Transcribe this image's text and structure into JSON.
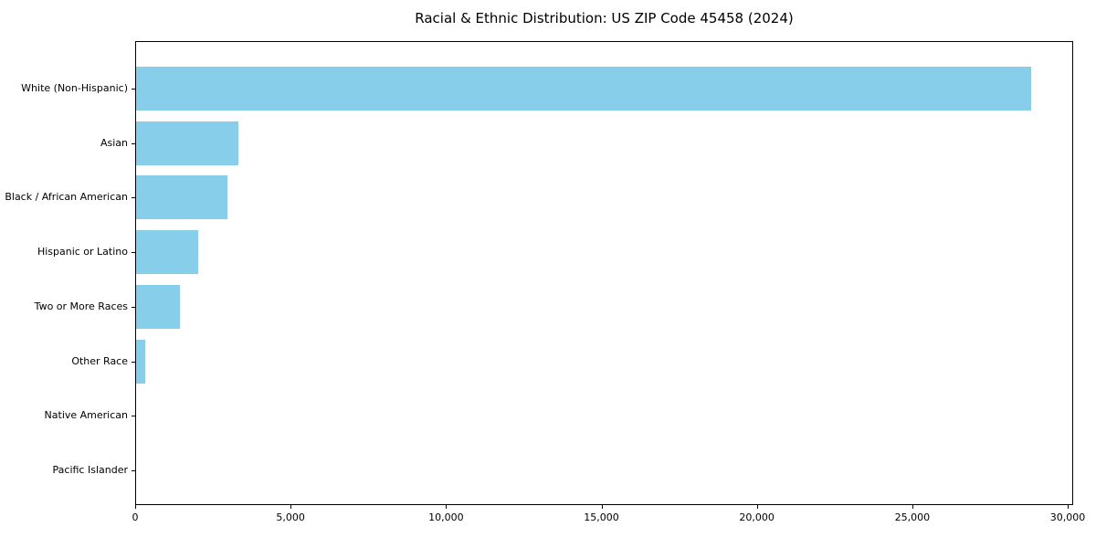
{
  "chart_data": {
    "type": "bar",
    "orientation": "horizontal",
    "title": "Racial & Ethnic Distribution: US ZIP Code 45458 (2024)",
    "categories": [
      "White (Non-Hispanic)",
      "Asian",
      "Black / African American",
      "Hispanic or Latino",
      "Two or More Races",
      "Other Race",
      "Native American",
      "Pacific Islander"
    ],
    "values": [
      28800,
      3300,
      2950,
      2000,
      1400,
      300,
      0,
      0
    ],
    "xlabel": "",
    "ylabel": "",
    "xlim": [
      0,
      30200
    ],
    "xticks": [
      0,
      5000,
      10000,
      15000,
      20000,
      25000,
      30000
    ],
    "xtick_labels": [
      "0",
      "5,000",
      "10,000",
      "15,000",
      "20,000",
      "25,000",
      "30,000"
    ],
    "bar_color": "#87CEEB",
    "axis_color": "#000000",
    "background_color": "#ffffff",
    "grid": false,
    "legend": null
  }
}
